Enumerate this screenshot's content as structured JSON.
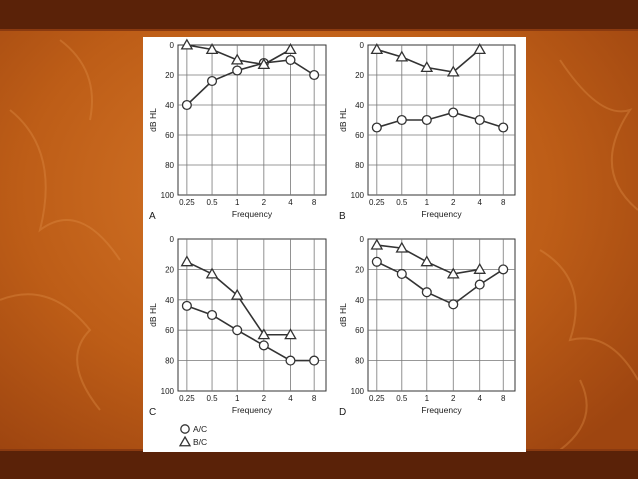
{
  "slide": {
    "background_color": "#c4651a",
    "band_color": "#5a2208",
    "figure_background": "#ffffff"
  },
  "chart_data": [
    {
      "type": "line",
      "panel_label": "A",
      "xlabel": "Frequency",
      "ylabel": "dB HL",
      "x": [
        "0.25",
        "0.5",
        "1",
        "2",
        "4",
        "8"
      ],
      "ylim": [
        0,
        100
      ],
      "y_inverted": true,
      "y_ticks": [
        "0",
        "20",
        "40",
        "60",
        "80",
        "100"
      ],
      "grid": true,
      "series": [
        {
          "name": "A/C",
          "marker": "circle",
          "values": [
            40,
            24,
            17,
            12,
            10,
            20
          ]
        },
        {
          "name": "B/C",
          "marker": "triangle",
          "values": [
            0,
            3,
            10,
            13,
            3,
            null
          ]
        }
      ]
    },
    {
      "type": "line",
      "panel_label": "B",
      "xlabel": "Frequency",
      "ylabel": "dB HL",
      "x": [
        "0.25",
        "0.5",
        "1",
        "2",
        "4",
        "8"
      ],
      "ylim": [
        0,
        100
      ],
      "y_inverted": true,
      "y_ticks": [
        "0",
        "20",
        "40",
        "60",
        "80",
        "100"
      ],
      "grid": true,
      "series": [
        {
          "name": "A/C",
          "marker": "circle",
          "values": [
            55,
            50,
            50,
            45,
            50,
            55
          ]
        },
        {
          "name": "B/C",
          "marker": "triangle",
          "values": [
            3,
            8,
            15,
            18,
            3,
            null
          ]
        }
      ]
    },
    {
      "type": "line",
      "panel_label": "C",
      "xlabel": "Frequency",
      "ylabel": "dB HL",
      "x": [
        "0.25",
        "0.5",
        "1",
        "2",
        "4",
        "8"
      ],
      "ylim": [
        0,
        100
      ],
      "y_inverted": true,
      "y_ticks": [
        "0",
        "20",
        "40",
        "60",
        "80",
        "100"
      ],
      "grid": true,
      "series": [
        {
          "name": "A/C",
          "marker": "circle",
          "values": [
            44,
            50,
            60,
            70,
            80,
            80
          ]
        },
        {
          "name": "B/C",
          "marker": "triangle",
          "values": [
            15,
            23,
            37,
            63,
            63,
            null
          ]
        }
      ]
    },
    {
      "type": "line",
      "panel_label": "D",
      "xlabel": "Frequency",
      "ylabel": "dB HL",
      "x": [
        "0.25",
        "0.5",
        "1",
        "2",
        "4",
        "8"
      ],
      "ylim": [
        0,
        100
      ],
      "y_inverted": true,
      "y_ticks": [
        "0",
        "20",
        "40",
        "60",
        "80",
        "100"
      ],
      "grid": true,
      "series": [
        {
          "name": "A/C",
          "marker": "circle",
          "values": [
            15,
            23,
            35,
            43,
            30,
            20
          ]
        },
        {
          "name": "B/C",
          "marker": "triangle",
          "values": [
            4,
            6,
            15,
            23,
            20,
            null
          ]
        }
      ]
    }
  ],
  "legend": [
    {
      "marker": "circle",
      "label": "A/C"
    },
    {
      "marker": "triangle",
      "label": "B/C"
    }
  ]
}
